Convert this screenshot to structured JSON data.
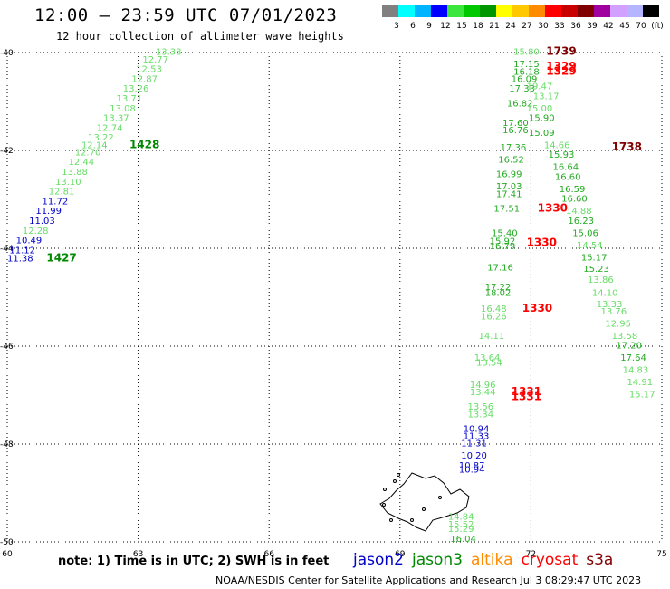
{
  "header": {
    "title": "12:00 – 23:59 UTC 07/01/2023",
    "subtitle": "12 hour collection of altimeter wave heights"
  },
  "colorbar": {
    "colors": [
      "#808080",
      "#00ffff",
      "#00b4ff",
      "#0000ff",
      "#3ce63c",
      "#00c800",
      "#009600",
      "#ffff00",
      "#ffc800",
      "#ff8c00",
      "#ff0000",
      "#c80000",
      "#800000",
      "#a000a0",
      "#d2a0ff",
      "#b4b4ff",
      "#000000"
    ],
    "labels": [
      "3",
      "6",
      "9",
      "12",
      "15",
      "18",
      "21",
      "24",
      "27",
      "30",
      "33",
      "36",
      "39",
      "42",
      "45",
      "70",
      "(ft)"
    ]
  },
  "axes": {
    "lat_labels": [
      "-40",
      "-42",
      "-44",
      "-46",
      "-48",
      "-50"
    ],
    "lon_labels": [
      "60",
      "63",
      "66",
      "69",
      "72",
      "75"
    ]
  },
  "tracks": {
    "colors": {
      "jason2": "#0000cc",
      "jason3": "#008800",
      "altika": "#ff8c00",
      "cryosat": "#ff0000",
      "s3a": "#800000",
      "lightgreen": "#66dd66",
      "green": "#22aa22"
    },
    "wave_labels": [
      {
        "t": "13.38",
        "c": "lightgreen",
        "lon": 63.4,
        "lat": -40.05
      },
      {
        "t": "12.77",
        "c": "lightgreen",
        "lon": 63.1,
        "lat": -40.2
      },
      {
        "t": "12.53",
        "c": "lightgreen",
        "lon": 62.95,
        "lat": -40.4
      },
      {
        "t": "12.87",
        "c": "lightgreen",
        "lon": 62.85,
        "lat": -40.6
      },
      {
        "t": "13.26",
        "c": "lightgreen",
        "lon": 62.65,
        "lat": -40.8
      },
      {
        "t": "13.71",
        "c": "lightgreen",
        "lon": 62.5,
        "lat": -41.0
      },
      {
        "t": "13.08",
        "c": "lightgreen",
        "lon": 62.35,
        "lat": -41.2
      },
      {
        "t": "13.37",
        "c": "lightgreen",
        "lon": 62.2,
        "lat": -41.4
      },
      {
        "t": "12.74",
        "c": "lightgreen",
        "lon": 62.05,
        "lat": -41.6
      },
      {
        "t": "13.22",
        "c": "lightgreen",
        "lon": 61.85,
        "lat": -41.8
      },
      {
        "t": "12.14",
        "c": "lightgreen",
        "lon": 61.7,
        "lat": -41.95
      },
      {
        "t": "12.70",
        "c": "lightgreen",
        "lon": 61.55,
        "lat": -42.1
      },
      {
        "t": "12.44",
        "c": "lightgreen",
        "lon": 61.4,
        "lat": -42.3
      },
      {
        "t": "13.88",
        "c": "lightgreen",
        "lon": 61.25,
        "lat": -42.5
      },
      {
        "t": "13.10",
        "c": "lightgreen",
        "lon": 61.1,
        "lat": -42.7
      },
      {
        "t": "12.81",
        "c": "lightgreen",
        "lon": 60.95,
        "lat": -42.9
      },
      {
        "t": "11.72",
        "c": "jason2",
        "lon": 60.8,
        "lat": -43.1
      },
      {
        "t": "11.99",
        "c": "jason2",
        "lon": 60.65,
        "lat": -43.3
      },
      {
        "t": "11.03",
        "c": "jason2",
        "lon": 60.5,
        "lat": -43.5
      },
      {
        "t": "12.28",
        "c": "lightgreen",
        "lon": 60.35,
        "lat": -43.7
      },
      {
        "t": "10.49",
        "c": "jason2",
        "lon": 60.2,
        "lat": -43.9
      },
      {
        "t": "11.12",
        "c": "jason2",
        "lon": 60.05,
        "lat": -44.1
      },
      {
        "t": "11.38",
        "c": "jason2",
        "lon": 60.0,
        "lat": -44.27
      },
      {
        "t": "15.80",
        "c": "lightgreen",
        "lon": 71.6,
        "lat": -40.05
      },
      {
        "t": "17.15",
        "c": "green",
        "lon": 71.6,
        "lat": -40.3
      },
      {
        "t": "16.18",
        "c": "green",
        "lon": 71.6,
        "lat": -40.45
      },
      {
        "t": "16.09",
        "c": "green",
        "lon": 71.55,
        "lat": -40.6
      },
      {
        "t": "17.33",
        "c": "green",
        "lon": 71.5,
        "lat": -40.8
      },
      {
        "t": "19.47",
        "c": "lightgreen",
        "lon": 71.9,
        "lat": -40.75
      },
      {
        "t": "13.17",
        "c": "lightgreen",
        "lon": 72.05,
        "lat": -40.95
      },
      {
        "t": "16.82",
        "c": "green",
        "lon": 71.45,
        "lat": -41.1
      },
      {
        "t": "15.00",
        "c": "lightgreen",
        "lon": 71.9,
        "lat": -41.2
      },
      {
        "t": "15.90",
        "c": "green",
        "lon": 71.95,
        "lat": -41.4
      },
      {
        "t": "17.60",
        "c": "green",
        "lon": 71.35,
        "lat": -41.5
      },
      {
        "t": "16.76",
        "c": "green",
        "lon": 71.35,
        "lat": -41.65
      },
      {
        "t": "15.09",
        "c": "green",
        "lon": 71.95,
        "lat": -41.7
      },
      {
        "t": "14.66",
        "c": "lightgreen",
        "lon": 72.3,
        "lat": -41.95
      },
      {
        "t": "17.36",
        "c": "green",
        "lon": 71.3,
        "lat": -42.0
      },
      {
        "t": "15.93",
        "c": "green",
        "lon": 72.4,
        "lat": -42.15
      },
      {
        "t": "16.52",
        "c": "green",
        "lon": 71.25,
        "lat": -42.25
      },
      {
        "t": "16.64",
        "c": "green",
        "lon": 72.5,
        "lat": -42.4
      },
      {
        "t": "16.99",
        "c": "green",
        "lon": 71.2,
        "lat": -42.55
      },
      {
        "t": "16.60",
        "c": "green",
        "lon": 72.55,
        "lat": -42.6
      },
      {
        "t": "17.03",
        "c": "green",
        "lon": 71.2,
        "lat": -42.8
      },
      {
        "t": "16.59",
        "c": "green",
        "lon": 72.65,
        "lat": -42.85
      },
      {
        "t": "17.41",
        "c": "green",
        "lon": 71.2,
        "lat": -42.95
      },
      {
        "t": "16.60",
        "c": "green",
        "lon": 72.7,
        "lat": -43.05
      },
      {
        "t": "17.51",
        "c": "green",
        "lon": 71.15,
        "lat": -43.25
      },
      {
        "t": "14.88",
        "c": "lightgreen",
        "lon": 72.8,
        "lat": -43.3
      },
      {
        "t": "16.23",
        "c": "green",
        "lon": 72.85,
        "lat": -43.5
      },
      {
        "t": "15.40",
        "c": "green",
        "lon": 71.1,
        "lat": -43.75
      },
      {
        "t": "15.06",
        "c": "green",
        "lon": 72.95,
        "lat": -43.75
      },
      {
        "t": "15.92",
        "c": "green",
        "lon": 71.05,
        "lat": -43.92
      },
      {
        "t": "16.79",
        "c": "green",
        "lon": 71.05,
        "lat": -44.02
      },
      {
        "t": "14.54",
        "c": "lightgreen",
        "lon": 73.05,
        "lat": -44.0
      },
      {
        "t": "15.17",
        "c": "green",
        "lon": 73.15,
        "lat": -44.25
      },
      {
        "t": "17.16",
        "c": "green",
        "lon": 71.0,
        "lat": -44.45
      },
      {
        "t": "15.23",
        "c": "green",
        "lon": 73.2,
        "lat": -44.48
      },
      {
        "t": "13.86",
        "c": "lightgreen",
        "lon": 73.3,
        "lat": -44.7
      },
      {
        "t": "17.22",
        "c": "green",
        "lon": 70.95,
        "lat": -44.85
      },
      {
        "t": "18.02",
        "c": "green",
        "lon": 70.95,
        "lat": -44.97
      },
      {
        "t": "14.10",
        "c": "lightgreen",
        "lon": 73.4,
        "lat": -44.97
      },
      {
        "t": "13.33",
        "c": "lightgreen",
        "lon": 73.5,
        "lat": -45.2
      },
      {
        "t": "16.48",
        "c": "lightgreen",
        "lon": 70.85,
        "lat": -45.3
      },
      {
        "t": "16.26",
        "c": "lightgreen",
        "lon": 70.85,
        "lat": -45.45
      },
      {
        "t": "13.76",
        "c": "lightgreen",
        "lon": 73.6,
        "lat": -45.35
      },
      {
        "t": "12.95",
        "c": "lightgreen",
        "lon": 73.7,
        "lat": -45.6
      },
      {
        "t": "14.11",
        "c": "lightgreen",
        "lon": 70.8,
        "lat": -45.85
      },
      {
        "t": "13.58",
        "c": "lightgreen",
        "lon": 73.85,
        "lat": -45.85
      },
      {
        "t": "17.20",
        "c": "green",
        "lon": 73.95,
        "lat": -46.05
      },
      {
        "t": "17.64",
        "c": "green",
        "lon": 74.05,
        "lat": -46.3
      },
      {
        "t": "14.83",
        "c": "lightgreen",
        "lon": 74.1,
        "lat": -46.55
      },
      {
        "t": "14.91",
        "c": "lightgreen",
        "lon": 74.2,
        "lat": -46.8
      },
      {
        "t": "15.17",
        "c": "lightgreen",
        "lon": 74.25,
        "lat": -47.05
      },
      {
        "t": "13.64",
        "c": "lightgreen",
        "lon": 70.7,
        "lat": -46.3
      },
      {
        "t": "13.54",
        "c": "lightgreen",
        "lon": 70.75,
        "lat": -46.4
      },
      {
        "t": "14.96",
        "c": "lightgreen",
        "lon": 70.6,
        "lat": -46.85
      },
      {
        "t": "13.44",
        "c": "lightgreen",
        "lon": 70.6,
        "lat": -47.0
      },
      {
        "t": "13.56",
        "c": "lightgreen",
        "lon": 70.55,
        "lat": -47.3
      },
      {
        "t": "13.34",
        "c": "lightgreen",
        "lon": 70.55,
        "lat": -47.45
      },
      {
        "t": "10.94",
        "c": "jason2",
        "lon": 70.45,
        "lat": -47.75
      },
      {
        "t": "11.33",
        "c": "jason2",
        "lon": 70.45,
        "lat": -47.9
      },
      {
        "t": "11.31",
        "c": "jason2",
        "lon": 70.4,
        "lat": -48.05
      },
      {
        "t": "10.20",
        "c": "jason2",
        "lon": 70.4,
        "lat": -48.3
      },
      {
        "t": "10.87",
        "c": "jason2",
        "lon": 70.35,
        "lat": -48.5
      },
      {
        "t": "10.94",
        "c": "jason2",
        "lon": 70.35,
        "lat": -48.58
      },
      {
        "t": "14.84",
        "c": "lightgreen",
        "lon": 70.1,
        "lat": -49.55
      },
      {
        "t": "15.52",
        "c": "lightgreen",
        "lon": 70.1,
        "lat": -49.7
      },
      {
        "t": "15.29",
        "c": "lightgreen",
        "lon": 70.1,
        "lat": -49.8
      },
      {
        "t": "16.04",
        "c": "green",
        "lon": 70.15,
        "lat": -50.0
      }
    ],
    "time_labels": [
      {
        "t": "1428",
        "c": "jason3",
        "lon": 62.8,
        "lat": -41.95
      },
      {
        "t": "1427",
        "c": "jason3",
        "lon": 60.9,
        "lat": -44.27
      },
      {
        "t": "1739",
        "c": "s3a",
        "lon": 72.35,
        "lat": -40.05
      },
      {
        "t": "1329",
        "c": "cryosat",
        "lon": 72.35,
        "lat": -40.35
      },
      {
        "t": "1329",
        "c": "cryosat",
        "lon": 72.35,
        "lat": -40.45
      },
      {
        "t": "1738",
        "c": "s3a",
        "lon": 73.85,
        "lat": -42.0
      },
      {
        "t": "1330",
        "c": "cryosat",
        "lon": 72.15,
        "lat": -43.25
      },
      {
        "t": "1330",
        "c": "cryosat",
        "lon": 71.9,
        "lat": -43.95
      },
      {
        "t": "1330",
        "c": "cryosat",
        "lon": 71.8,
        "lat": -45.3
      },
      {
        "t": "1331",
        "c": "cryosat",
        "lon": 71.55,
        "lat": -47.0
      },
      {
        "t": "1331",
        "c": "cryosat",
        "lon": 71.55,
        "lat": -47.1
      }
    ]
  },
  "notes": {
    "note": "note: 1) Time is in UTC; 2) SWH is in feet",
    "credit": "NOAA/NESDIS Center for Satellite Applications and Research    Jul  3 08:29:47 UTC 2023"
  },
  "legend": [
    {
      "label": "jason2",
      "color": "#0000cc"
    },
    {
      "label": "jason3",
      "color": "#008800"
    },
    {
      "label": "altika",
      "color": "#ff8c00"
    },
    {
      "label": "cryosat",
      "color": "#ff0000"
    },
    {
      "label": "s3a",
      "color": "#800000"
    }
  ]
}
